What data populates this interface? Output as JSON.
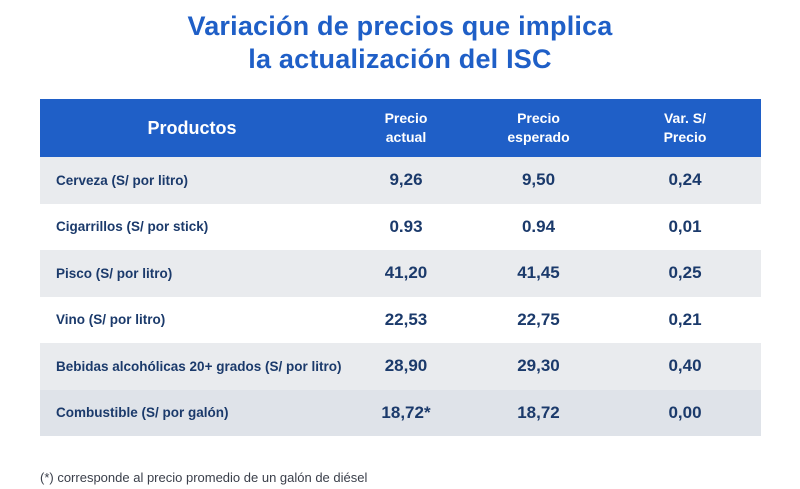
{
  "title": {
    "line1": "Variación de precios que implica",
    "line2": "la actualización del ISC"
  },
  "table": {
    "headers": {
      "producto": "Productos",
      "actual_line1": "Precio",
      "actual_line2": "actual",
      "esperado_line1": "Precio",
      "esperado_line2": "esperado",
      "var_line1": "Var. S/",
      "var_line2": "Precio"
    },
    "rows": [
      {
        "producto": "Cerveza (S/ por litro)",
        "actual": "9,26",
        "esperado": "9,50",
        "var": "0,24"
      },
      {
        "producto": "Cigarrillos (S/ por stick)",
        "actual": "0.93",
        "esperado": "0.94",
        "var": "0,01"
      },
      {
        "producto": "Pisco (S/ por litro)",
        "actual": "41,20",
        "esperado": "41,45",
        "var": "0,25"
      },
      {
        "producto": "Vino (S/ por litro)",
        "actual": "22,53",
        "esperado": "22,75",
        "var": "0,21"
      },
      {
        "producto": "Bebidas alcohólicas 20+ grados (S/ por litro)",
        "actual": "28,90",
        "esperado": "29,30",
        "var": "0,40"
      },
      {
        "producto": "Combustible (S/ por galón)",
        "actual": "18,72*",
        "esperado": "18,72",
        "var": "0,00"
      }
    ]
  },
  "footnote": "(*) corresponde al precio promedio de un galón de diésel",
  "colors": {
    "accent": "#1f5fc7",
    "row_alt": "#e9ebee",
    "text_dark": "#1b3a6b"
  }
}
